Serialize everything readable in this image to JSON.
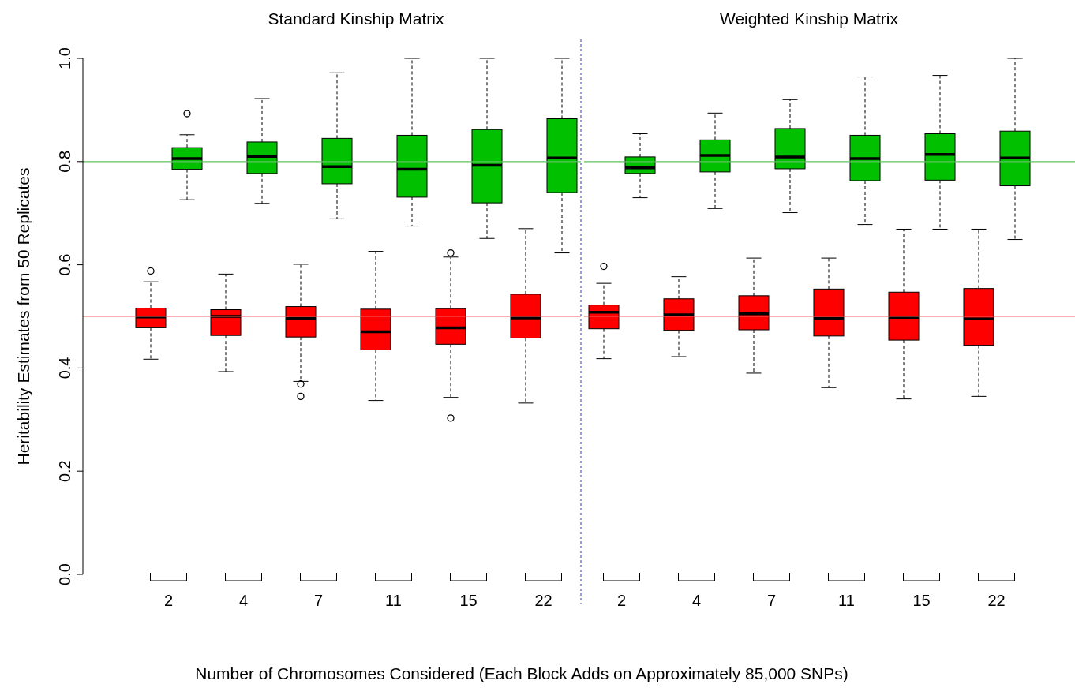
{
  "chart_data": [
    {
      "type": "box",
      "title": "Standard Kinship Matrix",
      "xlabel": "Number of Chromosomes Considered (Each Block Adds on Approximately 85,000 SNPs)",
      "ylabel": "Heritability Estimates from 50 Replicates",
      "categories": [
        "2",
        "4",
        "7",
        "11",
        "15",
        "22"
      ],
      "ylim": [
        0,
        1
      ],
      "yticks": [
        {
          "value": 0,
          "label": "0.0"
        },
        0.2,
        0.4,
        0.6,
        0.8,
        {
          "value": 1,
          "label": "1.0"
        }
      ],
      "ref_lines": [
        {
          "axis": "y",
          "value": 0.8,
          "color": "#5ec45e"
        },
        {
          "axis": "y",
          "value": 0.5,
          "color": "#f06060"
        }
      ],
      "series": [
        {
          "color": "#ff0000",
          "boxes": [
            {
              "low": 0.417,
              "q1": 0.478,
              "median": 0.499,
              "q3": 0.516,
              "high": 0.567,
              "outliers": [
                0.588
              ]
            },
            {
              "low": 0.393,
              "q1": 0.463,
              "median": 0.5,
              "q3": 0.513,
              "high": 0.582
            },
            {
              "low": 0.374,
              "q1": 0.46,
              "median": 0.496,
              "q3": 0.519,
              "high": 0.601,
              "outliers": [
                0.369,
                0.345
              ]
            },
            {
              "low": 0.337,
              "q1": 0.435,
              "median": 0.47,
              "q3": 0.514,
              "high": 0.626
            },
            {
              "low": 0.343,
              "q1": 0.446,
              "median": 0.478,
              "q3": 0.515,
              "high": 0.615,
              "outliers": [
                0.623,
                0.303
              ]
            },
            {
              "low": 0.332,
              "q1": 0.458,
              "median": 0.497,
              "q3": 0.543,
              "high": 0.67
            }
          ]
        },
        {
          "color": "#00c000",
          "boxes": [
            {
              "low": 0.726,
              "q1": 0.785,
              "median": 0.806,
              "q3": 0.827,
              "high": 0.852,
              "outliers": [
                0.893
              ]
            },
            {
              "low": 0.719,
              "q1": 0.777,
              "median": 0.81,
              "q3": 0.838,
              "high": 0.922
            },
            {
              "low": 0.689,
              "q1": 0.757,
              "median": 0.79,
              "q3": 0.845,
              "high": 0.972
            },
            {
              "low": 0.675,
              "q1": 0.731,
              "median": 0.785,
              "q3": 0.851,
              "high": 1.0
            },
            {
              "low": 0.651,
              "q1": 0.72,
              "median": 0.793,
              "q3": 0.862,
              "high": 1.0
            },
            {
              "low": 0.623,
              "q1": 0.74,
              "median": 0.807,
              "q3": 0.883,
              "high": 1.0
            }
          ]
        }
      ]
    },
    {
      "type": "box",
      "title": "Weighted Kinship Matrix",
      "categories": [
        "2",
        "4",
        "7",
        "11",
        "15",
        "22"
      ],
      "ylim": [
        0,
        1
      ],
      "yticks": [
        0,
        0.2,
        0.4,
        0.6,
        0.8,
        1
      ],
      "tick_labels": "x",
      "ref_lines": [
        {
          "axis": "y",
          "value": 0.8,
          "color": "#5ec45e"
        },
        {
          "axis": "y",
          "value": 0.5,
          "color": "#f06060"
        }
      ],
      "series": [
        {
          "color": "#ff0000",
          "boxes": [
            {
              "low": 0.418,
              "q1": 0.476,
              "median": 0.508,
              "q3": 0.522,
              "high": 0.564,
              "outliers": [
                0.597
              ]
            },
            {
              "low": 0.422,
              "q1": 0.473,
              "median": 0.503,
              "q3": 0.534,
              "high": 0.577
            },
            {
              "low": 0.39,
              "q1": 0.474,
              "median": 0.505,
              "q3": 0.54,
              "high": 0.613
            },
            {
              "low": 0.362,
              "q1": 0.462,
              "median": 0.496,
              "q3": 0.553,
              "high": 0.613
            },
            {
              "low": 0.34,
              "q1": 0.454,
              "median": 0.498,
              "q3": 0.547,
              "high": 0.669
            },
            {
              "low": 0.345,
              "q1": 0.444,
              "median": 0.495,
              "q3": 0.554,
              "high": 0.669
            }
          ]
        },
        {
          "color": "#00c000",
          "boxes": [
            {
              "low": 0.73,
              "q1": 0.777,
              "median": 0.788,
              "q3": 0.809,
              "high": 0.854
            },
            {
              "low": 0.709,
              "q1": 0.78,
              "median": 0.812,
              "q3": 0.842,
              "high": 0.894
            },
            {
              "low": 0.701,
              "q1": 0.786,
              "median": 0.809,
              "q3": 0.864,
              "high": 0.92
            },
            {
              "low": 0.678,
              "q1": 0.763,
              "median": 0.806,
              "q3": 0.851,
              "high": 0.964
            },
            {
              "low": 0.669,
              "q1": 0.764,
              "median": 0.814,
              "q3": 0.854,
              "high": 0.967
            },
            {
              "low": 0.649,
              "q1": 0.753,
              "median": 0.807,
              "q3": 0.859,
              "high": 1.0
            }
          ]
        }
      ]
    }
  ]
}
